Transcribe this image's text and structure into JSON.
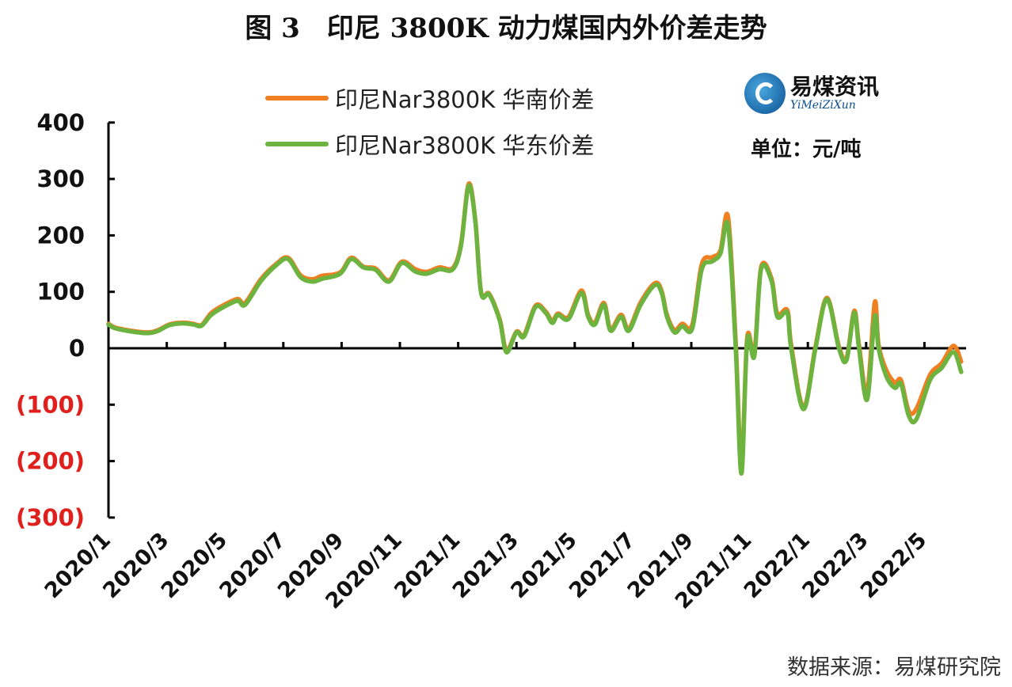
{
  "title": "图 3　印尼 3800K 动力煤国内外价差走势",
  "unit": "单位：元/吨",
  "source": "数据来源：易煤研究院",
  "logo": {
    "cn": "易煤资讯",
    "en": "YiMeiZiXun"
  },
  "colors": {
    "south": "#F07F22",
    "east": "#6DB33F",
    "negative_label": "#E0201C"
  },
  "chart_data": {
    "type": "line",
    "title": "图 3　印尼 3800K 动力煤国内外价差走势",
    "ylim": [
      -300,
      400
    ],
    "yticks": [
      400,
      300,
      200,
      100,
      0,
      -100,
      -200,
      -300
    ],
    "ytick_labels": [
      "400",
      "300",
      "200",
      "100",
      "0",
      "(100)",
      "(200)",
      "(300)"
    ],
    "xticks": [
      "2020/1",
      "2020/3",
      "2020/5",
      "2020/7",
      "2020/9",
      "2020/11",
      "2021/1",
      "2021/3",
      "2021/5",
      "2021/7",
      "2021/9",
      "2021/11",
      "2022/1",
      "2022/3",
      "2022/5"
    ],
    "grid": false,
    "legend": "top-center",
    "x": [
      "2020-01-01",
      "2020-01-11",
      "2020-02-14",
      "2020-03-04",
      "2020-03-18",
      "2020-03-29",
      "2020-04-07",
      "2020-04-17",
      "2020-04-30",
      "2020-05-14",
      "2020-05-22",
      "2020-06-08",
      "2020-06-24",
      "2020-07-06",
      "2020-07-19",
      "2020-08-01",
      "2020-08-11",
      "2020-08-30",
      "2020-09-11",
      "2020-09-24",
      "2020-10-06",
      "2020-10-20",
      "2020-11-03",
      "2020-11-17",
      "2020-11-29",
      "2020-12-12",
      "2020-12-26",
      "2021-01-04",
      "2021-01-12",
      "2021-01-19",
      "2021-01-25",
      "2021-02-03",
      "2021-02-14",
      "2021-02-21",
      "2021-03-01",
      "2021-03-09",
      "2021-03-21",
      "2021-04-01",
      "2021-04-08",
      "2021-04-14",
      "2021-04-25",
      "2021-05-08",
      "2021-05-15",
      "2021-05-22",
      "2021-06-01",
      "2021-06-08",
      "2021-06-19",
      "2021-06-27",
      "2021-07-09",
      "2021-07-24",
      "2021-07-31",
      "2021-08-06",
      "2021-08-14",
      "2021-08-22",
      "2021-09-02",
      "2021-09-12",
      "2021-09-23",
      "2021-10-01",
      "2021-10-09",
      "2021-10-17",
      "2021-10-23",
      "2021-10-29",
      "2021-11-06",
      "2021-11-13",
      "2021-11-24",
      "2021-11-30",
      "2021-12-10",
      "2021-12-14",
      "2021-12-27",
      "2022-01-09",
      "2022-01-21",
      "2022-02-03",
      "2022-02-11",
      "2022-02-19",
      "2022-02-24",
      "2022-03-02",
      "2022-03-10",
      "2022-03-14",
      "2022-03-22",
      "2022-03-31",
      "2022-04-07",
      "2022-04-15",
      "2022-04-23",
      "2022-05-07",
      "2022-05-19",
      "2022-06-01",
      "2022-06-09"
    ],
    "series": [
      {
        "name": "印尼Nar3800K 华南价差",
        "values": [
          42,
          34,
          27,
          41,
          44,
          42,
          40,
          61,
          75,
          86,
          79,
          121,
          148,
          159,
          128,
          121,
          127,
          133,
          159,
          143,
          140,
          119,
          152,
          139,
          134,
          142,
          141,
          184,
          290,
          225,
          98,
          95,
          50,
          -5,
          28,
          22,
          74,
          64,
          47,
          60,
          54,
          101,
          58,
          44,
          79,
          33,
          58,
          33,
          80,
          114,
          100,
          58,
          31,
          42,
          40,
          148,
          160,
          172,
          231,
          10,
          -210,
          18,
          -10,
          142,
          122,
          60,
          66,
          5,
          -106,
          2,
          88,
          2,
          -19,
          65,
          5,
          -80,
          80,
          5,
          -40,
          -62,
          -58,
          -112,
          -109,
          -48,
          -28,
          3,
          -25
        ]
      },
      {
        "name": "印尼Nar3800K 华东价差",
        "values": [
          42,
          34,
          27,
          41,
          44,
          42,
          40,
          59,
          73,
          84,
          77,
          119,
          147,
          158,
          126,
          118,
          123,
          132,
          158,
          143,
          139,
          118,
          151,
          136,
          132,
          140,
          140,
          182,
          288,
          224,
          98,
          95,
          49,
          -7,
          28,
          21,
          73,
          63,
          45,
          59,
          52,
          98,
          56,
          42,
          77,
          31,
          56,
          31,
          77,
          112,
          98,
          56,
          28,
          39,
          35,
          140,
          154,
          168,
          217,
          0,
          -222,
          14,
          -14,
          140,
          119,
          56,
          63,
          0,
          -108,
          0,
          87,
          0,
          -21,
          63,
          0,
          -91,
          56,
          0,
          -49,
          -70,
          -63,
          -119,
          -126,
          -56,
          -35,
          -7,
          -42
        ]
      }
    ]
  }
}
